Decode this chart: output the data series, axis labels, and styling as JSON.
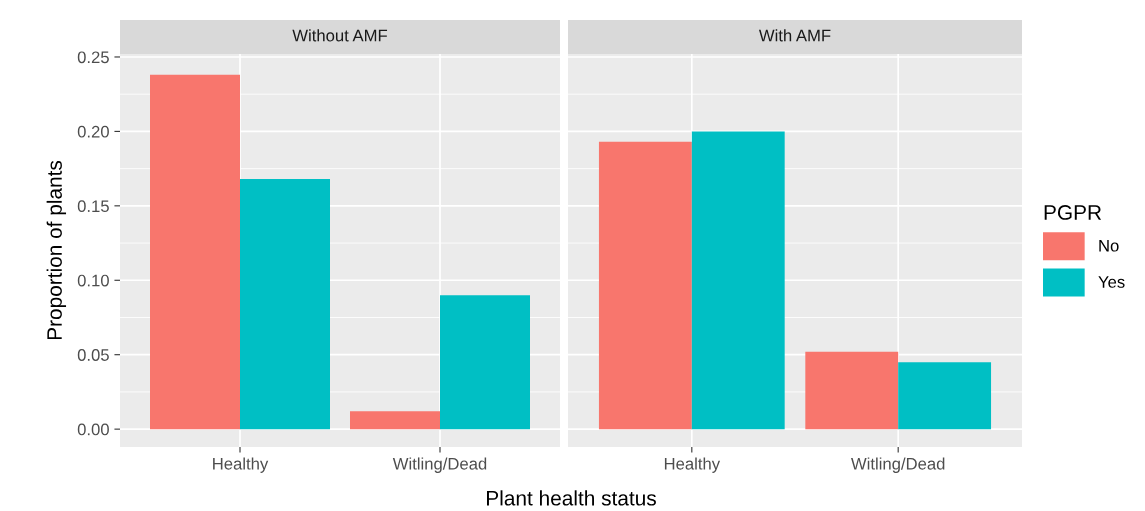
{
  "chart_data": [
    {
      "type": "bar",
      "title": "Without AMF",
      "ylabel": "Proportion of plants",
      "xlabel": "Plant health status",
      "categories": [
        "Healthy",
        "Witling/Dead"
      ],
      "series": [
        {
          "name": "No",
          "color": "#f8766d",
          "values": [
            0.238,
            0.012
          ]
        },
        {
          "name": "Yes",
          "color": "#00bfc4",
          "values": [
            0.168,
            0.09
          ]
        }
      ],
      "ylim": [
        -0.012,
        0.252
      ],
      "yticks": [
        {
          "value": 0,
          "label": "0.00"
        },
        {
          "value": 0.05,
          "label": "0.05"
        },
        {
          "value": 0.1,
          "label": "0.10"
        },
        {
          "value": 0.15,
          "label": "0.15"
        },
        {
          "value": 0.2,
          "label": "0.20"
        },
        {
          "value": 0.25,
          "label": "0.25"
        }
      ],
      "grid": true,
      "legend": "right",
      "legend_title": "PGPR"
    },
    {
      "type": "bar",
      "title": "With AMF",
      "categories": [
        "Healthy",
        "Witling/Dead"
      ],
      "series": [
        {
          "color": "#f8766d",
          "values": [
            0.193,
            0.052
          ]
        },
        {
          "color": "#00bfc4",
          "values": [
            0.2,
            0.045
          ]
        }
      ],
      "ylim": [
        -0.012,
        0.252
      ],
      "yticks": [
        0,
        0.05,
        0.1,
        0.15,
        0.2,
        0.25
      ],
      "tick_labels": "x",
      "grid": true
    }
  ]
}
